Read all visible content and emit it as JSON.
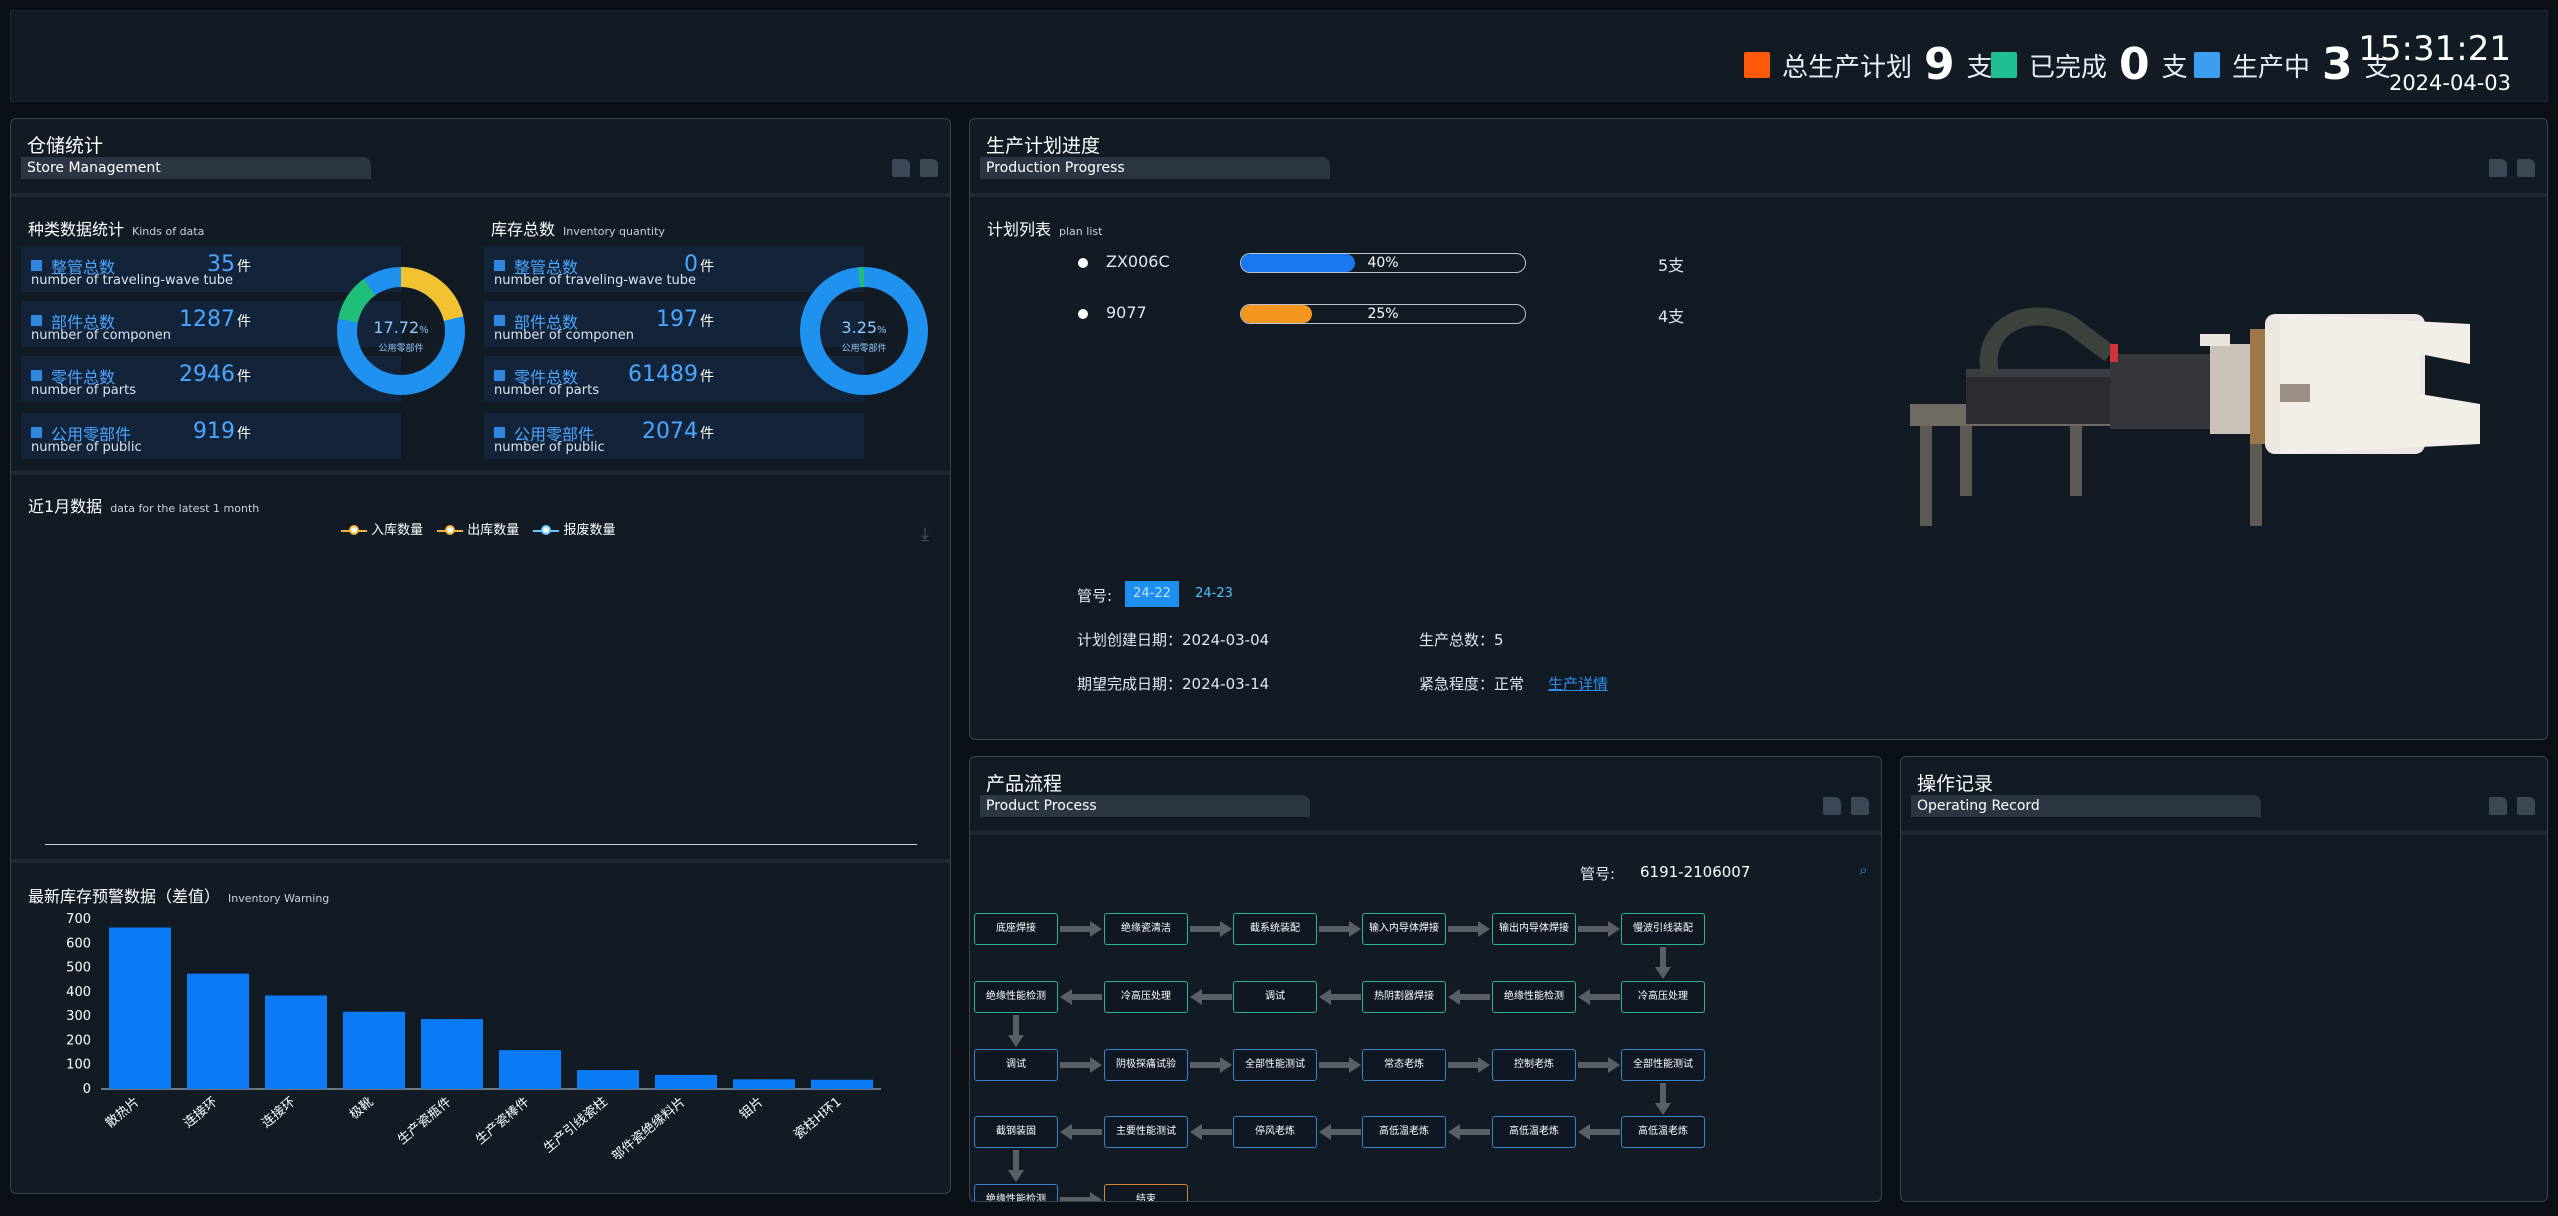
{
  "header": {
    "items": [
      {
        "label": "总生产计划",
        "value": "9",
        "unit": "支",
        "color": "#ff5a0a"
      },
      {
        "label": "已完成",
        "value": "0",
        "unit": "支",
        "color": "#1fbf92"
      },
      {
        "label": "生产中",
        "value": "3",
        "unit": "支",
        "color": "#3b9ff0"
      }
    ],
    "time": "15:31:21",
    "date": "2024-04-03"
  },
  "store": {
    "title": "仓储统计",
    "subtitle": "Store Management",
    "kinds": {
      "title": "种类数据统计",
      "subtitle": "Kinds of data",
      "rows": [
        {
          "label": "整管总数",
          "sub": "number of traveling-wave tube",
          "value": "35",
          "unit": "件"
        },
        {
          "label": "部件总数",
          "sub": "number of componen",
          "value": "1287",
          "unit": "件"
        },
        {
          "label": "零件总数",
          "sub": "number of parts",
          "value": "2946",
          "unit": "件"
        },
        {
          "label": "公用零部件",
          "sub": "number of public",
          "value": "919",
          "unit": "件"
        }
      ],
      "donut": {
        "percent": 17.72,
        "percent_text": "17.72",
        "unit": "%",
        "label": "公用零部件"
      }
    },
    "inventory": {
      "title": "库存总数",
      "subtitle": "Inventory quantity",
      "rows": [
        {
          "label": "整管总数",
          "sub": "number of traveling-wave tube",
          "value": "0",
          "unit": "件"
        },
        {
          "label": "部件总数",
          "sub": "number of componen",
          "value": "197",
          "unit": "件"
        },
        {
          "label": "零件总数",
          "sub": "number of parts",
          "value": "61489",
          "unit": "件"
        },
        {
          "label": "公用零部件",
          "sub": "number of public",
          "value": "2074",
          "unit": "件"
        }
      ],
      "donut": {
        "percent": 3.25,
        "percent_text": "3.25",
        "unit": "%",
        "label": "公用零部件"
      }
    },
    "month": {
      "title": "近1月数据",
      "subtitle": "data for the latest 1 month",
      "legend": [
        {
          "label": "入库数量",
          "color": "#f0b437"
        },
        {
          "label": "出库数量",
          "color": "#f0b437"
        },
        {
          "label": "报废数量",
          "color": "#69c8ff"
        }
      ]
    },
    "warning": {
      "title": "最新库存预警数据（差值）",
      "subtitle": "Inventory Warning"
    }
  },
  "chart_data": {
    "type": "bar",
    "categories": [
      "散热片",
      "连接环",
      "连接环",
      "极靴",
      "生产瓷瓶件",
      "生产瓷棒件",
      "生产引线瓷柱",
      "部件瓷绝缘料片",
      "钼片",
      "瓷柱H环1"
    ],
    "values": [
      665,
      475,
      385,
      318,
      288,
      160,
      78,
      58,
      40,
      38
    ],
    "ylim": [
      0,
      700
    ],
    "yticks": [
      0,
      100,
      200,
      300,
      400,
      500,
      600,
      700
    ],
    "xlabel": "",
    "ylabel": "",
    "color": "#0a7af5"
  },
  "production": {
    "title": "生产计划进度",
    "subtitle": "Production Progress",
    "plan_title": "计划列表",
    "plan_sub": "plan list",
    "plans": [
      {
        "name": "ZX006C",
        "progress": 40,
        "progress_text": "40%",
        "count": "5支",
        "color": "#1a78f0"
      },
      {
        "name": "9077",
        "progress": 25,
        "progress_text": "25%",
        "count": "4支",
        "color": "#f5961e"
      }
    ],
    "tube_label": "管号:",
    "tubes": [
      "24-22",
      "24-23"
    ],
    "create_date": "计划创建日期：2024-03-04",
    "total": "生产总数：5",
    "expect_date": "期望完成日期：2024-03-14",
    "urgency": "紧急程度：正常",
    "detail_link": "生产详情"
  },
  "process": {
    "title": "产品流程",
    "subtitle": "Product Process",
    "tube_label": "管号:",
    "tube_value": "6191-2106007",
    "rows": [
      [
        "底座焊接",
        "绝缘瓷清洁",
        "截系统装配",
        "输入内导体焊接",
        "输出内导体焊接",
        "慢波引线装配"
      ],
      [
        "冷高压处理",
        "绝缘性能检测",
        "热阴割器焊接",
        "调试",
        "冷高压处理",
        "绝缘性能检测"
      ],
      [
        "调试",
        "阴极探痛试验",
        "全部性能测试",
        "常态老炼",
        "控制老炼",
        "全部性能测试"
      ],
      [
        "高低温老炼",
        "高低温老炼",
        "高低温老炼",
        "停风老炼",
        "主要性能测试",
        "截钢装固"
      ],
      [
        "绝缘性能检测",
        "结束"
      ]
    ]
  },
  "record": {
    "title": "操作记录",
    "subtitle": "Operating Record"
  }
}
